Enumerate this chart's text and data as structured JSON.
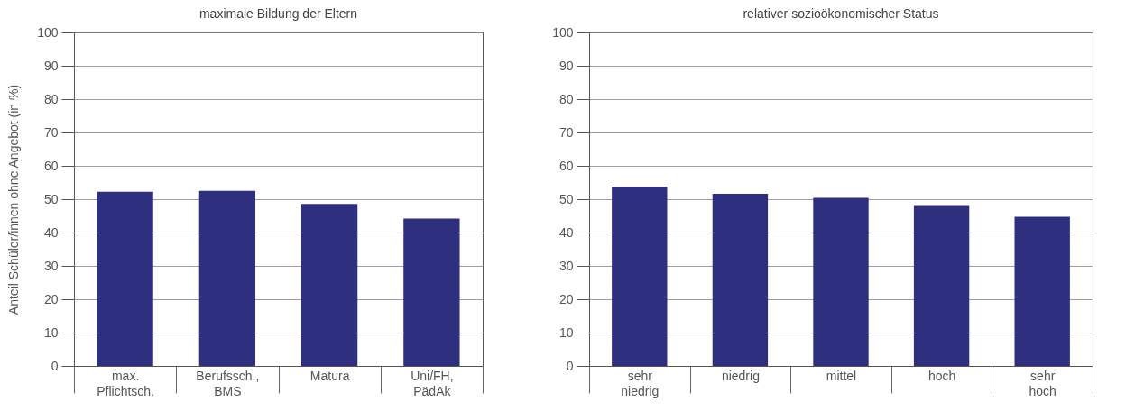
{
  "chart_data": [
    {
      "type": "bar",
      "title": "maximale Bildung der Eltern",
      "ylabel": "Anteil Schüler/innen ohne Angebot (in %)",
      "categories": [
        "max. Pflichtsch.",
        "Berufssch., BMS",
        "Matura",
        "Uni/FH, PädAk"
      ],
      "values": [
        52.2,
        52.5,
        48.6,
        44.2
      ],
      "color": "#2e2f7f",
      "ylim": [
        0,
        100
      ],
      "yticks": [
        0,
        10,
        20,
        30,
        40,
        50,
        60,
        70,
        80,
        90,
        100
      ],
      "grid": "y"
    },
    {
      "type": "bar",
      "title": "relativer sozioökonomischer Status",
      "categories": [
        "sehr niedrig",
        "niedrig",
        "mittel",
        "hoch",
        "sehr hoch"
      ],
      "values": [
        53.8,
        51.6,
        50.4,
        48.0,
        44.7
      ],
      "color": "#2e2f7f",
      "ylim": [
        0,
        100
      ],
      "yticks": [
        0,
        10,
        20,
        30,
        40,
        50,
        60,
        70,
        80,
        90,
        100
      ],
      "grid": "y"
    }
  ]
}
